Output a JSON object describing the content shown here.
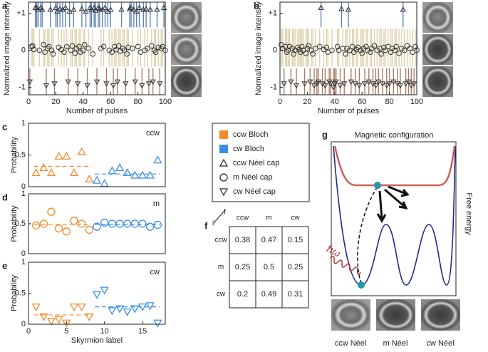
{
  "chart_data": [
    {
      "type": "scatter",
      "label": "a",
      "ylabel": "Normalized image intensity",
      "xlabel": "Number of pulses",
      "bands": true,
      "band_colors": [
        "#5b80b8",
        "#dccfaa",
        "#a97c60"
      ],
      "marker_color": "#333333",
      "xlim": [
        0,
        100
      ],
      "xticks": [
        0,
        20,
        40,
        60,
        80,
        100
      ],
      "ylim": [
        -1.2,
        1.3
      ],
      "yticks": [
        {
          "value": 1,
          "label": "+1"
        },
        0,
        -1
      ],
      "x": [
        1,
        2,
        3,
        4,
        5,
        6,
        7,
        8,
        9,
        10,
        11,
        12,
        13,
        14,
        15,
        16,
        17,
        18,
        19,
        20,
        21,
        22,
        23,
        24,
        25,
        26,
        27,
        28,
        29,
        30,
        31,
        32,
        33,
        34,
        35,
        36,
        37,
        38,
        39,
        40,
        41,
        42,
        43,
        44,
        45,
        46,
        47,
        48,
        49,
        50,
        51,
        52,
        53,
        54,
        55,
        56,
        57,
        58,
        59,
        60,
        61,
        62,
        63,
        64,
        65,
        66,
        67,
        68,
        69,
        70,
        71,
        72,
        73,
        74,
        75,
        76,
        77,
        78,
        79,
        80,
        81,
        82,
        83,
        84,
        85,
        86,
        87,
        88,
        89,
        90,
        91,
        92,
        93,
        94,
        95,
        96,
        97,
        98,
        99,
        100
      ],
      "values": [
        -0.85,
        0.1,
        0.12,
        0.02,
        1.15,
        1.15,
        1.1,
        0.0,
        1.15,
        1.1,
        0.15,
        -0.05,
        -0.95,
        0.05,
        0.1,
        1.1,
        0.0,
        -0.1,
        -0.9,
        1.15,
        1.05,
        0.08,
        1.12,
        0.02,
        1.1,
        -0.05,
        1.15,
        0.1,
        -0.85,
        1.05,
        0.0,
        0.12,
        1.1,
        -0.08,
        0.05,
        -0.9,
        0.1,
        -0.05,
        1.12,
        0.0,
        0.15,
        1.05,
        -0.95,
        0.05,
        1.15,
        1.1,
        -0.1,
        1.15,
        1.08,
        -0.85,
        1.15,
        1.12,
        0.05,
        1.1,
        0.1,
        1.15,
        -0.9,
        1.05,
        0.0,
        1.1,
        -0.05,
        -0.95,
        0.1,
        0.02,
        -0.85,
        0.12,
        -0.02,
        1.1,
        0.05,
        0.0,
        -0.9,
        -0.1,
        0.08,
        1.12,
        1.15,
        0.05,
        1.1,
        -0.85,
        1.05,
        0.1,
        1.15,
        -0.05,
        -0.95,
        1.1,
        0.0,
        1.12,
        0.05,
        -0.9,
        1.1,
        0.12,
        -0.85,
        0.0,
        -0.05,
        1.1,
        0.08,
        -0.9,
        0.05,
        0.1,
        1.15,
        0.0
      ]
    },
    {
      "type": "scatter",
      "label": "b",
      "ylabel": "Normalized image intensity",
      "xlabel": "Number of pulses",
      "bands": true,
      "band_colors": [
        "#5b80b8",
        "#dccfaa",
        "#a97c60"
      ],
      "marker_color": "#333333",
      "xlim": [
        0,
        100
      ],
      "xticks": [
        0,
        20,
        40,
        60,
        80,
        100
      ],
      "ylim": [
        -1.2,
        1.3
      ],
      "yticks": [
        {
          "value": 1,
          "label": "+1"
        },
        0,
        -1
      ],
      "x": [
        1,
        2,
        3,
        4,
        5,
        6,
        7,
        8,
        9,
        10,
        11,
        12,
        13,
        14,
        15,
        16,
        17,
        18,
        19,
        20,
        21,
        22,
        23,
        24,
        25,
        26,
        27,
        28,
        29,
        30,
        31,
        32,
        33,
        34,
        35,
        36,
        37,
        38,
        39,
        40,
        41,
        42,
        43,
        44,
        45,
        46,
        47,
        48,
        49,
        50,
        51,
        52,
        53,
        54,
        55,
        56,
        57,
        58,
        59,
        60,
        61,
        62,
        63,
        64,
        65,
        66,
        67,
        68,
        69,
        70,
        71,
        72,
        73,
        74,
        75,
        76,
        77,
        78,
        79,
        80,
        81,
        82,
        83,
        84,
        85,
        86,
        87,
        88,
        89,
        90,
        91,
        92,
        93,
        94,
        95,
        96,
        97,
        98,
        99,
        100
      ],
      "values": [
        0.15,
        0.05,
        -0.9,
        0.1,
        -0.05,
        0.0,
        0.1,
        -0.85,
        0.05,
        -0.1,
        0.0,
        -0.95,
        0.08,
        0.02,
        -0.05,
        0.1,
        0.0,
        -0.9,
        -0.08,
        0.05,
        0.12,
        -0.85,
        0.0,
        -0.1,
        -0.95,
        0.05,
        -0.9,
        -0.85,
        0.1,
        1.15,
        -0.9,
        0.02,
        -0.95,
        0.08,
        -0.05,
        -0.85,
        -0.9,
        0.0,
        -1.0,
        -0.9,
        -0.85,
        0.1,
        0.0,
        -0.95,
        1.12,
        0.05,
        -0.9,
        -0.1,
        0.05,
        1.1,
        0.0,
        -0.85,
        0.1,
        -0.05,
        -0.9,
        0.02,
        0.08,
        -0.95,
        0.0,
        -0.08,
        0.05,
        -0.9,
        0.1,
        0.0,
        -0.85,
        -0.05,
        0.05,
        -0.9,
        0.12,
        -0.95,
        0.0,
        -0.85,
        0.05,
        -0.1,
        -0.9,
        0.08,
        0.0,
        -0.95,
        0.1,
        -0.9,
        -0.05,
        0.05,
        -0.85,
        0.0,
        0.1,
        -0.9,
        -0.08,
        -0.95,
        0.05,
        1.1,
        0.0,
        -0.9,
        0.12,
        -0.85,
        0.05,
        -0.95,
        -0.05,
        -0.9,
        0.1,
        0.0
      ]
    },
    {
      "type": "scatter",
      "label": "c",
      "ylabel": "Probability",
      "corner_label": "ccw",
      "marker": "triangle-up",
      "xlim": [
        0,
        18
      ],
      "ylim": [
        0,
        1
      ],
      "yticks": [
        0,
        0.5,
        1
      ],
      "series": [
        {
          "color": "#f28a2c",
          "x": [
            1,
            2,
            3,
            4,
            5,
            6,
            7,
            8
          ],
          "values": [
            0.22,
            0.3,
            0.22,
            0.48,
            0.48,
            0.22,
            0.55,
            0.12
          ],
          "mean": 0.32
        },
        {
          "color": "#3a8ee6",
          "x": [
            9,
            10,
            11,
            12,
            13,
            14,
            15,
            16,
            17
          ],
          "values": [
            0.1,
            0.05,
            0.25,
            0.3,
            0.22,
            0.18,
            0.18,
            0.18,
            0.42
          ],
          "mean": 0.2
        }
      ]
    },
    {
      "type": "scatter",
      "label": "d",
      "ylabel": "Probability",
      "corner_label": "m",
      "marker": "circle",
      "xlim": [
        0,
        18
      ],
      "ylim": [
        0,
        1
      ],
      "yticks": [
        0,
        0.5,
        1
      ],
      "series": [
        {
          "color": "#f28a2c",
          "x": [
            1,
            2,
            3,
            4,
            5,
            6,
            7,
            8
          ],
          "values": [
            0.47,
            0.5,
            0.7,
            0.42,
            0.37,
            0.55,
            0.5,
            0.4
          ],
          "mean": 0.49
        },
        {
          "color": "#3a8ee6",
          "x": [
            9,
            10,
            11,
            12,
            13,
            14,
            15,
            16,
            17
          ],
          "values": [
            0.45,
            0.52,
            0.5,
            0.5,
            0.5,
            0.5,
            0.5,
            0.45,
            0.48
          ],
          "mean": 0.49
        }
      ]
    },
    {
      "type": "scatter",
      "label": "e",
      "ylabel": "Probability",
      "xlabel": "Skyrmion label",
      "corner_label": "cw",
      "marker": "triangle-down",
      "xlim": [
        0,
        18
      ],
      "xticks": [
        0,
        5,
        10,
        15
      ],
      "ylim": [
        0,
        1
      ],
      "yticks": [
        0,
        0.5,
        1
      ],
      "series": [
        {
          "color": "#f28a2c",
          "x": [
            1,
            2,
            3,
            4,
            5,
            6,
            7,
            8
          ],
          "values": [
            0.28,
            0.12,
            0.05,
            0.08,
            0.02,
            0.28,
            0.28,
            0.12
          ],
          "mean": 0.15
        },
        {
          "color": "#3a8ee6",
          "x": [
            9,
            10,
            11,
            12,
            13,
            14,
            15,
            16,
            17
          ],
          "values": [
            0.48,
            0.55,
            0.22,
            0.25,
            0.2,
            0.25,
            0.28,
            0.3,
            0.02
          ],
          "mean": 0.28
        }
      ]
    }
  ],
  "legend": [
    {
      "label": "ccw Bloch",
      "color": "#f28a2c"
    },
    {
      "label": "cw Bloch",
      "color": "#3a8ee6"
    },
    {
      "label": "ccw Néel cap",
      "marker": "triangle-up"
    },
    {
      "label": "m Néel cap",
      "marker": "circle"
    },
    {
      "label": "cw Néel cap",
      "marker": "triangle-down"
    }
  ],
  "table": {
    "label": "f",
    "col_axis": "f",
    "row_axis": "i",
    "columns": [
      "ccw",
      "m",
      "cw"
    ],
    "rows": [
      {
        "label": "ccw",
        "cells": [
          0.38,
          0.47,
          0.15
        ]
      },
      {
        "label": "m",
        "cells": [
          0.25,
          0.5,
          0.25
        ]
      },
      {
        "label": "cw",
        "cells": [
          0.2,
          0.49,
          0.31
        ]
      }
    ]
  },
  "diagram": {
    "label": "g",
    "title": "Magnetic configuration",
    "ylabel": "Free energy",
    "photon": "ℏω",
    "states": [
      "ccw Néel",
      "m Néel",
      "cw Néel"
    ]
  }
}
